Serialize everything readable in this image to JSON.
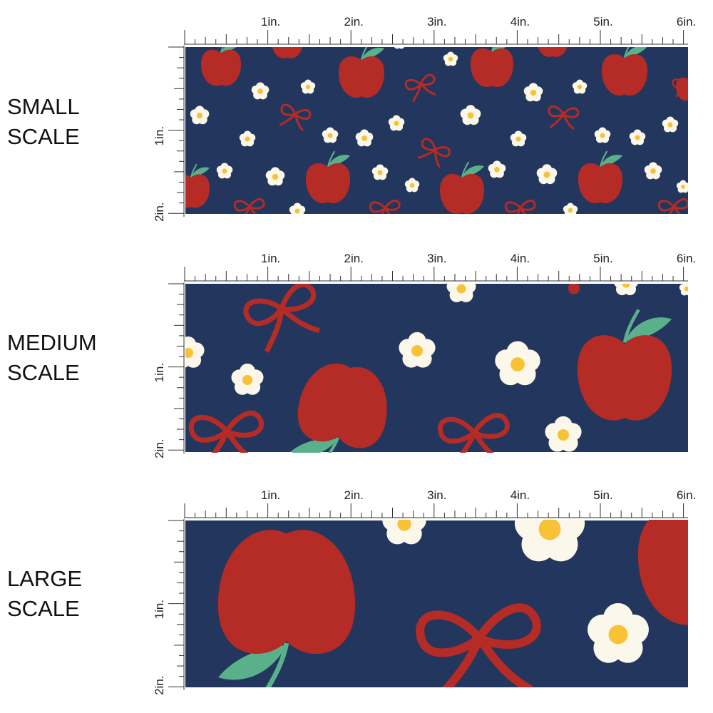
{
  "panels": [
    {
      "label": [
        "SMALL",
        "SCALE"
      ],
      "ruler_top": [
        "1in.",
        "2in.",
        "3in.",
        "4in.",
        "5in.",
        "6in."
      ],
      "ruler_side": [
        "1in.",
        "2in."
      ]
    },
    {
      "label": [
        "MEDIUM",
        "SCALE"
      ],
      "ruler_top": [
        "1in.",
        "2in.",
        "3in.",
        "4in.",
        "5in.",
        "6in."
      ],
      "ruler_side": [
        "1in.",
        "2in."
      ]
    },
    {
      "label": [
        "LARGE",
        "SCALE"
      ],
      "ruler_top": [
        "1in.",
        "2in.",
        "3in.",
        "4in.",
        "5in.",
        "6in."
      ],
      "ruler_side": [
        "1in.",
        "2in."
      ]
    }
  ]
}
